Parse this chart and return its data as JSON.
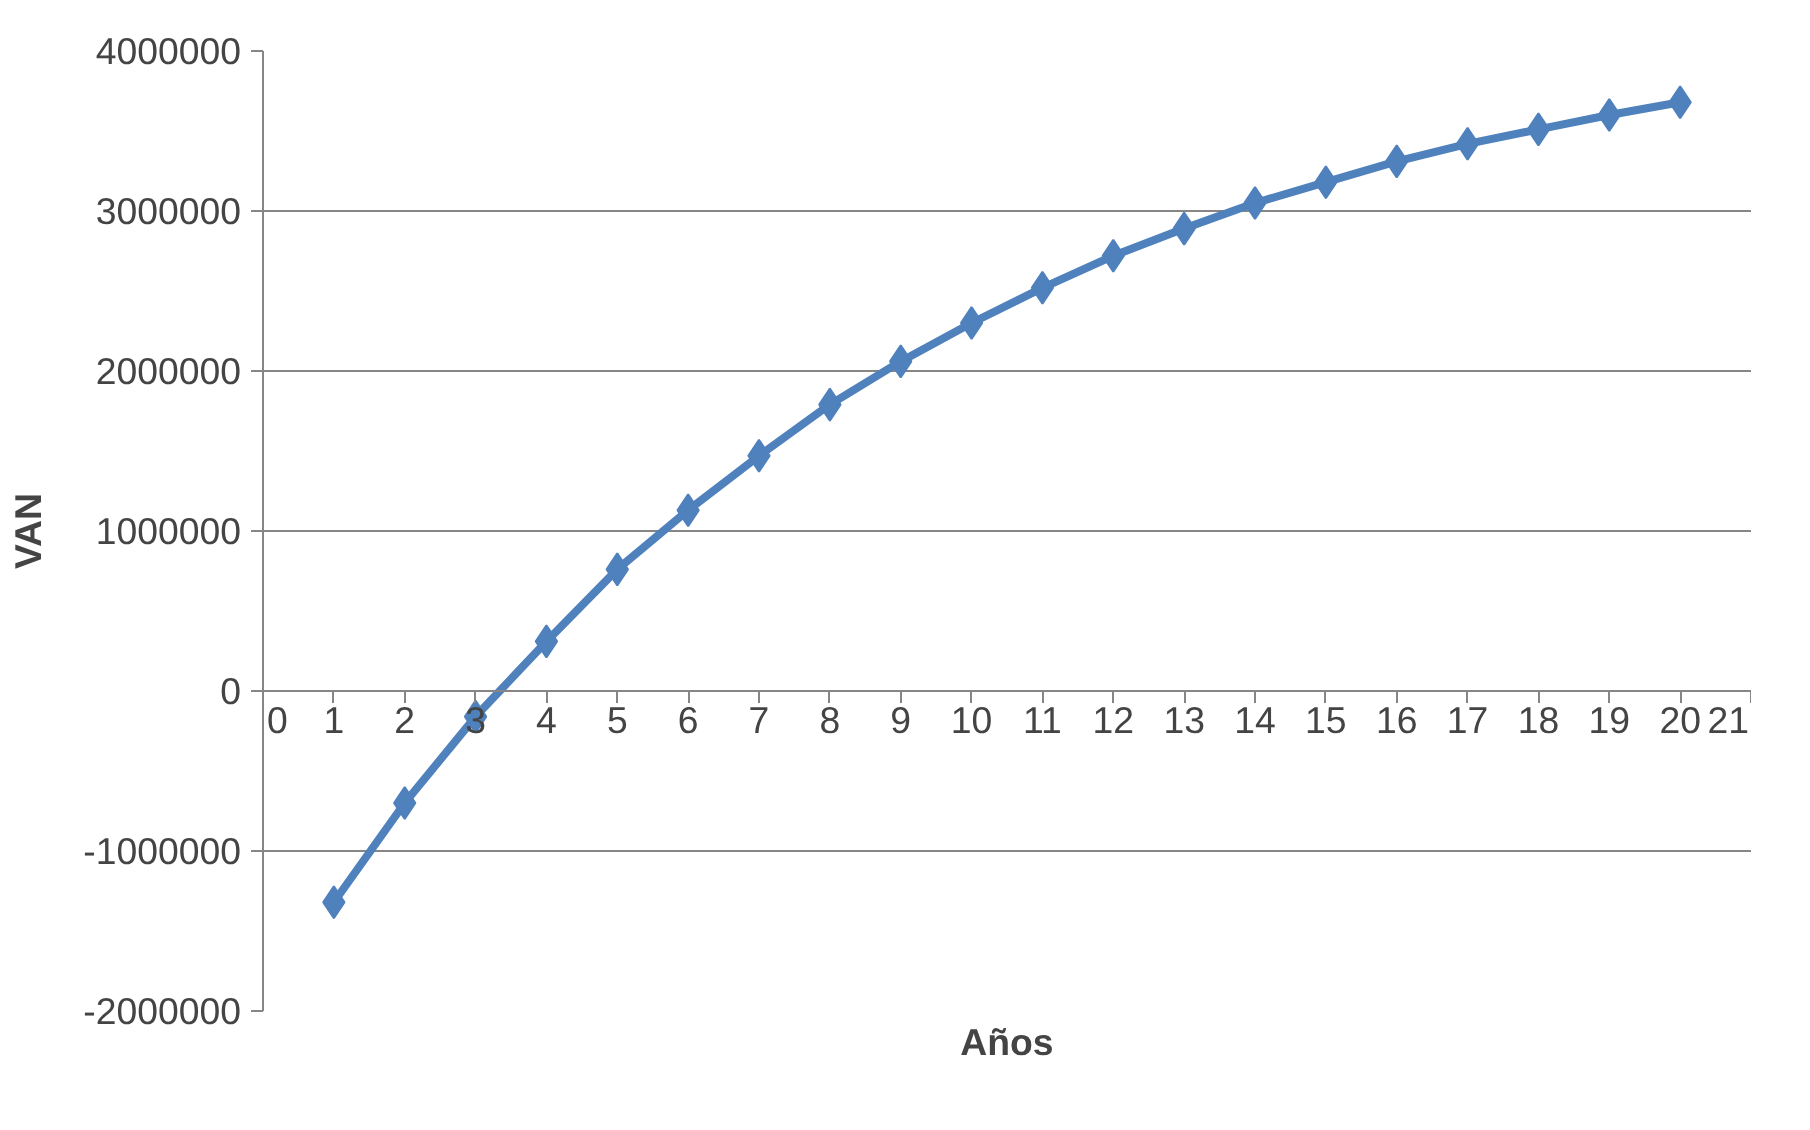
{
  "chart_data": {
    "type": "line",
    "xlabel": "Años",
    "ylabel": "VAN",
    "x": [
      1,
      2,
      3,
      4,
      5,
      6,
      7,
      8,
      9,
      10,
      11,
      12,
      13,
      14,
      15,
      16,
      17,
      18,
      19,
      20
    ],
    "series": [
      {
        "color": "#4f81bd",
        "values": [
          -1320000,
          -700000,
          -160000,
          310000,
          760000,
          1130000,
          1470000,
          1790000,
          2060000,
          2300000,
          2520000,
          2720000,
          2890000,
          3050000,
          3180000,
          3310000,
          3420000,
          3510000,
          3600000,
          3680000
        ]
      }
    ],
    "xlim": [
      0,
      21
    ],
    "xticks": [
      0,
      1,
      2,
      3,
      4,
      5,
      6,
      7,
      8,
      9,
      10,
      11,
      12,
      13,
      14,
      15,
      16,
      17,
      18,
      19,
      20,
      21
    ],
    "ylim": [
      -2000000,
      4000000
    ],
    "yticks": [
      -2000000,
      -1000000,
      0,
      1000000,
      2000000,
      3000000,
      4000000
    ],
    "grid": "y",
    "marker": "diamond",
    "line_style": "solid"
  }
}
